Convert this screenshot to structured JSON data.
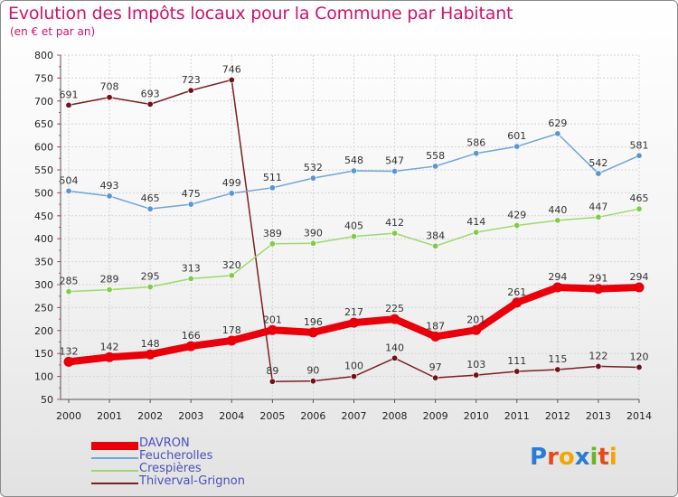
{
  "title": "Evolution des Impôts locaux pour la Commune par Habitant",
  "subtitle": "(en € et par an)",
  "logo": {
    "parts": [
      {
        "text": "P",
        "color": "#2a7bd4"
      },
      {
        "text": "r",
        "color": "#e84a1a"
      },
      {
        "text": "o",
        "color": "#f5a500"
      },
      {
        "text": "x",
        "color": "#2a7bd4"
      },
      {
        "text": "i",
        "color": "#6bb42a"
      },
      {
        "text": "t",
        "color": "#e84a1a"
      },
      {
        "text": "i",
        "color": "#f5a500"
      }
    ]
  },
  "chart_data": {
    "type": "line",
    "x": [
      2000,
      2001,
      2002,
      2003,
      2004,
      2005,
      2006,
      2007,
      2008,
      2009,
      2010,
      2011,
      2012,
      2013,
      2014
    ],
    "ylim": [
      50,
      800
    ],
    "yticks": [
      50,
      100,
      150,
      200,
      250,
      300,
      350,
      400,
      450,
      500,
      550,
      600,
      650,
      700,
      750,
      800
    ],
    "grid": true,
    "legend_position": "bottom-left",
    "series": [
      {
        "name": "DAVRON",
        "color": "#e8000b",
        "width": 8,
        "marker_color": "#e8000b",
        "values": [
          132,
          142,
          148,
          166,
          178,
          201,
          196,
          217,
          225,
          187,
          201,
          261,
          294,
          291,
          294
        ]
      },
      {
        "name": "Feucherolles",
        "color": "#6fa5d8",
        "width": 1.5,
        "marker_color": "#5b96d0",
        "values": [
          504,
          493,
          465,
          475,
          499,
          511,
          532,
          548,
          547,
          558,
          586,
          601,
          629,
          542,
          581
        ]
      },
      {
        "name": "Crespières",
        "color": "#9ed86a",
        "width": 1.5,
        "marker_color": "#7fcc4a",
        "values": [
          285,
          289,
          295,
          313,
          320,
          389,
          390,
          405,
          412,
          384,
          414,
          429,
          440,
          447,
          465
        ]
      },
      {
        "name": "Thiverval-Grignon",
        "color": "#7a1f24",
        "width": 1.5,
        "marker_color": "#6e1218",
        "values": [
          691,
          708,
          693,
          723,
          746,
          89,
          90,
          100,
          140,
          97,
          103,
          111,
          115,
          122,
          120
        ]
      }
    ]
  }
}
